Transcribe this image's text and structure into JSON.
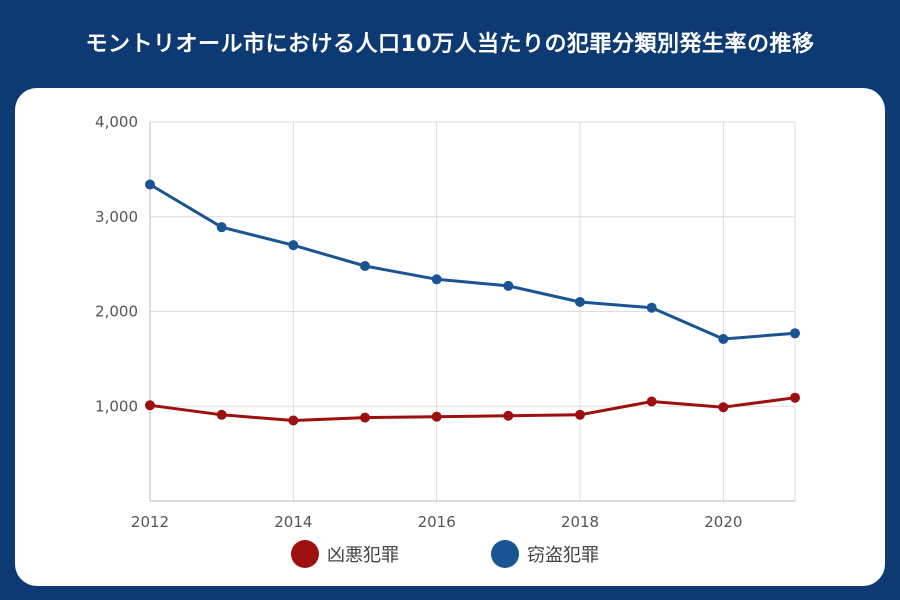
{
  "title": "モントリオール市における人口10万人当たりの犯罪分類別発生率の推移",
  "colors": {
    "background": "#0d3a73",
    "card": "#ffffff"
  },
  "chart_data": {
    "type": "line",
    "title": "モントリオール市における人口10万人当たりの犯罪分類別発生率の推移",
    "xlabel": "",
    "ylabel": "",
    "x": [
      2012,
      2013,
      2014,
      2015,
      2016,
      2017,
      2018,
      2019,
      2020,
      2021
    ],
    "x_tick_labels": [
      "2012",
      "2014",
      "2016",
      "2018",
      "2020"
    ],
    "y_tick_labels": [
      "1,000",
      "2,000",
      "3,000",
      "4,000"
    ],
    "xlim": [
      2012,
      2021
    ],
    "ylim": [
      0,
      4000
    ],
    "grid": true,
    "legend_position": "bottom",
    "series": [
      {
        "name": "凶悪犯罪",
        "color": "#9e0f0f",
        "values": [
          1010,
          910,
          850,
          880,
          890,
          900,
          910,
          1050,
          990,
          1090
        ]
      },
      {
        "name": "窃盗犯罪",
        "color": "#1a5493",
        "values": [
          3340,
          2890,
          2700,
          2480,
          2340,
          2270,
          2100,
          2040,
          1710,
          1770
        ]
      }
    ]
  }
}
